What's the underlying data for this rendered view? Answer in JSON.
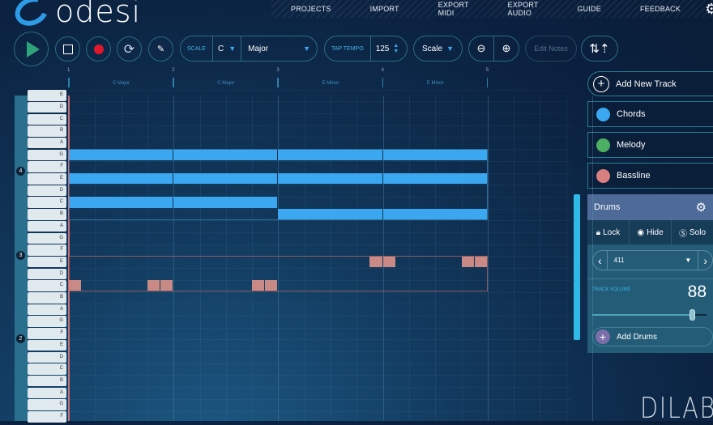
{
  "app": {
    "name": "odesi"
  },
  "nav": [
    "PROJECTS",
    "IMPORT",
    "EXPORT MIDI",
    "EXPORT AUDIO",
    "GUIDE",
    "FEEDBACK"
  ],
  "toolbar": {
    "scale_label": "SCALE",
    "key": "C",
    "mode": "Major",
    "tap_tempo_label": "TAP TEMPO",
    "tempo": "125",
    "view_select": "Scale",
    "edit_notes": "Edit Notes"
  },
  "ruler": {
    "bars": [
      "1",
      "2",
      "3",
      "4",
      "5"
    ],
    "chords": [
      "C Major",
      "C Major",
      "E Minor",
      "E Minor"
    ]
  },
  "keys": [
    "E",
    "D",
    "C",
    "B",
    "A",
    "G",
    "F",
    "E",
    "D",
    "C",
    "B",
    "A",
    "G",
    "F",
    "E",
    "D",
    "C",
    "B",
    "A",
    "G",
    "F",
    "E",
    "D",
    "C",
    "B",
    "A",
    "G",
    "F"
  ],
  "octaves": [
    "4",
    "3",
    "2"
  ],
  "colors": {
    "chords": "#3ba7f0",
    "melody": "#4caf63",
    "bassline": "#d87f80",
    "drums": "#c98a86",
    "accent": "#2fb9e6"
  },
  "chord_notes": [
    {
      "pitch": "G4",
      "start": 0,
      "len": 4
    },
    {
      "pitch": "G4",
      "start": 4,
      "len": 4
    },
    {
      "pitch": "G4",
      "start": 8,
      "len": 4
    },
    {
      "pitch": "G4",
      "start": 12,
      "len": 4
    },
    {
      "pitch": "E4",
      "start": 0,
      "len": 4
    },
    {
      "pitch": "E4",
      "start": 4,
      "len": 4
    },
    {
      "pitch": "E4",
      "start": 8,
      "len": 4
    },
    {
      "pitch": "E4",
      "start": 12,
      "len": 4
    },
    {
      "pitch": "C4",
      "start": 0,
      "len": 4
    },
    {
      "pitch": "C4",
      "start": 4,
      "len": 4
    },
    {
      "pitch": "B3",
      "start": 8,
      "len": 4
    },
    {
      "pitch": "B3",
      "start": 12,
      "len": 4
    }
  ],
  "drum_notes": [
    {
      "pitch": "C3",
      "start": 0,
      "len": 0.5
    },
    {
      "pitch": "C3",
      "start": 3,
      "len": 0.5
    },
    {
      "pitch": "C3",
      "start": 3.5,
      "len": 0.5
    },
    {
      "pitch": "C3",
      "start": 7,
      "len": 0.5
    },
    {
      "pitch": "C3",
      "start": 7.5,
      "len": 0.5
    },
    {
      "pitch": "E3",
      "start": 11.5,
      "len": 0.5
    },
    {
      "pitch": "E3",
      "start": 12,
      "len": 0.5
    },
    {
      "pitch": "E3",
      "start": 15,
      "len": 0.5
    },
    {
      "pitch": "E3",
      "start": 15.5,
      "len": 0.5
    }
  ],
  "sidebar": {
    "add_track": "Add New Track",
    "tracks": [
      {
        "name": "Chords"
      },
      {
        "name": "Melody"
      },
      {
        "name": "Bassline"
      }
    ],
    "drums": {
      "title": "Drums",
      "lock": "Lock",
      "hide": "Hide",
      "solo": "Solo",
      "pattern": "411",
      "volume_label": "TRACK VOLUME",
      "volume": "88",
      "volume_fraction": 0.88,
      "add_drums": "Add Drums"
    }
  },
  "brand": "DILAB"
}
